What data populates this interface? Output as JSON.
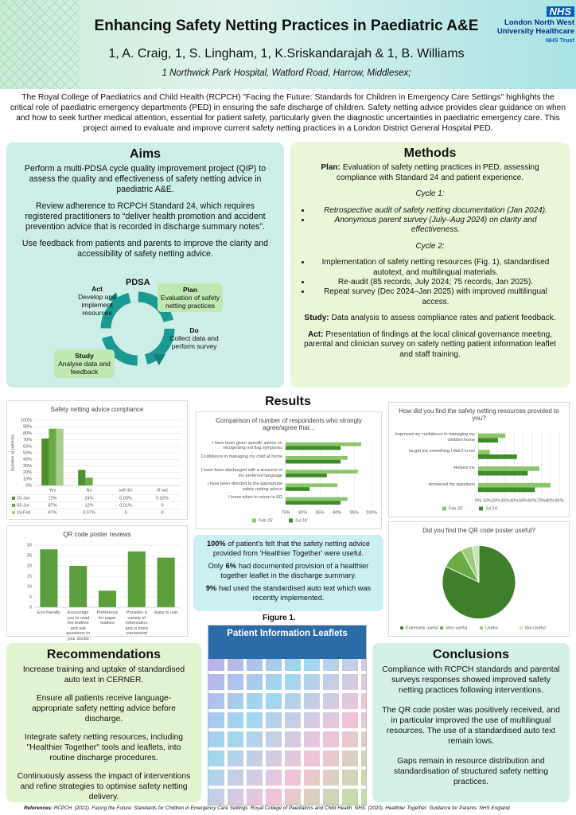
{
  "header": {
    "title": "Enhancing Safety Netting Practices in Paediatric A&E",
    "authors": "1, A. Craig, 1, S. Lingham, 1, K.Sriskandarajah & 1, B. Williams",
    "affiliation": "1 Northwick Park Hospital, Watford Road, Harrow, Middlesex;",
    "logo": {
      "badge": "NHS",
      "lines": [
        "London North West",
        "University Healthcare",
        "NHS Trust"
      ]
    }
  },
  "intro": "The Royal College of Paediatrics and Child Health (RCPCH) \"Facing the Future: Standards for Children in Emergency Care Settings\" highlights the critical role of paediatric emergency departments (PED) in ensuring the safe discharge of children. Safety netting advice provides clear guidance on when and how to seek further medical attention, essential for patient safety, particularly given the diagnostic uncertainties in paediatric emergency care. This project aimed to evaluate and improve current safety netting practices in a London District General Hospital PED.",
  "aims": {
    "heading": "Aims",
    "paragraphs": [
      "Perform a multi-PDSA cycle quality improvement project (QIP) to assess the quality and effectiveness of safety netting advice in paediatric A&E.",
      "Review adherence to RCPCH Standard 24, which requires registered practitioners to “deliver health promotion and accident prevention advice that is recorded in discharge summary notes”.",
      "Use feedback from patients and parents to improve the clarity and accessibility of safety netting advice."
    ],
    "pdsa": {
      "title": "PDSA",
      "steps": [
        {
          "name": "Plan",
          "text": "Evaluation of safety netting practices"
        },
        {
          "name": "Do",
          "text": "Collect data and perform survey"
        },
        {
          "name": "Study",
          "text": "Analyse data and feedback"
        },
        {
          "name": "Act",
          "text": "Develop and implement resources"
        }
      ]
    }
  },
  "methods": {
    "heading": "Methods",
    "plan": {
      "label": "Plan:",
      "text": "Evaluation of safety netting practices in PED, assessing compliance with Standard 24 and patient experience."
    },
    "cycles": [
      {
        "title": "Cycle 1:",
        "items": [
          "Retrospective audit of safety netting documentation (Jan 2024).",
          "Anonymous parent survey (July–Aug 2024) on clarity and effectiveness."
        ]
      },
      {
        "title": "Cycle 2:",
        "items": [
          "Implementation of safety netting resources (Fig. 1), standardised autotext, and multilingual materials.",
          "Re-audit (85 records, July 2024; 75 records, Jan 2025).",
          "Repeat survey (Dec 2024–Jan 2025) with improved multilingual access."
        ]
      }
    ],
    "study": {
      "label": "Study:",
      "text": "Data analysis to assess compliance rates and patient feedback."
    },
    "act": {
      "label": "Act:",
      "text": "Presentation of findings at the local clinical governance meeting, parental and clinician survey on safety netting patient information leaflet and staff training."
    }
  },
  "results": {
    "heading": "Results",
    "findings": [
      [
        {
          "bold": "100%"
        },
        {
          "text": "of patient's felt that the safety netting advice provided from 'Healthier Together' were useful."
        }
      ],
      [
        {
          "text": "Only"
        },
        {
          "bold": "6%"
        },
        {
          "text": "had documented provision of a healthier together leaflet in the discharge summary."
        }
      ],
      [
        {
          "bold": "9%"
        },
        {
          "text": "had used the standardised auto text which was recently implemented."
        }
      ]
    ]
  },
  "chart_data": [
    {
      "type": "bar",
      "title": "Safety netting advice compliance",
      "y_label": "Number of patients",
      "categories": [
        "Yes",
        "No",
        "self d/c",
        "l/f out"
      ],
      "series": [
        {
          "name": "15-Jan",
          "color": "#4f8f30",
          "values": [
            72,
            24,
            0,
            0.02
          ],
          "value_labels": [
            "72%",
            "24%",
            "0.00%",
            "0.02%"
          ]
        },
        {
          "name": "03-Jul",
          "color": "#6aab45",
          "values": [
            87,
            12,
            0.01,
            0
          ],
          "value_labels": [
            "87%",
            "12%",
            "0.01%",
            "0"
          ]
        },
        {
          "name": "19-Feb",
          "color": "#a9cf8e",
          "values": [
            87,
            0.07,
            0,
            0
          ],
          "value_labels": [
            "87%",
            "0.07%",
            "0",
            "0"
          ]
        }
      ],
      "ylim": [
        0,
        100
      ],
      "yticks": [
        {
          "value": 0,
          "label": "0%"
        },
        {
          "value": 10,
          "label": "10%"
        },
        {
          "value": 20,
          "label": "20%"
        },
        {
          "value": 30,
          "label": "30%"
        },
        {
          "value": 40,
          "label": "40%"
        },
        {
          "value": 50,
          "label": "50%"
        },
        {
          "value": 60,
          "label": "60%"
        },
        {
          "value": 70,
          "label": "70%"
        },
        {
          "value": 80,
          "label": "80%"
        },
        {
          "value": 90,
          "label": "90%"
        },
        {
          "value": 100,
          "label": "100%"
        }
      ],
      "grid": true,
      "data_table": true
    },
    {
      "type": "hbar",
      "title": "Comparison of number of respondents who strongly agree/agree that...",
      "categories": [
        "I have been given specific advice on recognising red flag symptoms",
        "Confidence in managing my child at home",
        "I have been discharged with a resource of my preferred language",
        "I have been directed to the appropriate safety netting advice",
        "I know when to return to ED"
      ],
      "series": [
        {
          "name": "Feb 25'",
          "color": "#8cc56a",
          "values": [
            97,
            93,
            96,
            90,
            93
          ]
        },
        {
          "name": "Jul 24'",
          "color": "#3f8a2b",
          "values": [
            91,
            91,
            87,
            82,
            91
          ]
        }
      ],
      "xlim": [
        75,
        100
      ],
      "xticks": [
        {
          "value": 75,
          "label": "75%"
        },
        {
          "value": 80,
          "label": "80%"
        },
        {
          "value": 85,
          "label": "85%"
        },
        {
          "value": 90,
          "label": "90%"
        },
        {
          "value": 95,
          "label": "95%"
        },
        {
          "value": 100,
          "label": "100%"
        }
      ],
      "grid": true
    },
    {
      "type": "hbar",
      "title": "How did you find the safety netting resources provided to you?",
      "categories": [
        "Improved my confidence in managing my children home",
        "taught me something I didn't know",
        "Helped me",
        "Answered my questions"
      ],
      "series": [
        {
          "name": "Feb 25'",
          "color": "#8cc56a",
          "values": [
            30,
            13,
            68,
            80
          ]
        },
        {
          "name": "Jul 24'",
          "color": "#3f8a2b",
          "values": [
            22,
            43,
            55,
            63
          ]
        }
      ],
      "xlim": [
        0,
        90
      ],
      "xticks": [
        {
          "value": 0,
          "label": "0%"
        },
        {
          "value": 10,
          "label": "10%"
        },
        {
          "value": 20,
          "label": "20%"
        },
        {
          "value": 30,
          "label": "30%"
        },
        {
          "value": 40,
          "label": "40%"
        },
        {
          "value": 50,
          "label": "50%"
        },
        {
          "value": 60,
          "label": "60%"
        },
        {
          "value": 70,
          "label": "70%"
        },
        {
          "value": 80,
          "label": "80%"
        },
        {
          "value": 90,
          "label": "90%"
        }
      ],
      "grid": true
    },
    {
      "type": "bar",
      "title": "QR code poster reviews",
      "categories": [
        "Eco-friendly",
        "Encourage you to read the leaflets and ask questions to your doctor",
        "Preference for paper leaflets",
        "Provides a variety of information and is more convenient",
        "Easy to use"
      ],
      "values": [
        28,
        20,
        8,
        27,
        24
      ],
      "color": "#5c9e3c",
      "ylim": [
        0,
        30
      ],
      "yticks": [
        0,
        5,
        10,
        15,
        20,
        25,
        30
      ],
      "grid": true
    },
    {
      "type": "pie",
      "title": "Did you find the QR code poster useful?",
      "categories": [
        "Extremely useful",
        "Very useful",
        "Useful",
        "Not Useful"
      ],
      "values": [
        82,
        10,
        5,
        3
      ],
      "colors": [
        "#3f7f2a",
        "#6aab45",
        "#9ccc7e",
        "#c9e3b6"
      ]
    }
  ],
  "figure": {
    "caption": "Figure 1.",
    "title": "Patient Information Leaflets"
  },
  "recommendations": {
    "heading": "Recommendations",
    "items": [
      "Increase training and uptake of standardised auto text in CERNER.",
      "Ensure all patients receive language-appropriate safety netting advice before discharge.",
      "Integrate safety netting resources, including \"Healthier Together\" tools and leaflets, into routine discharge procedures.",
      "Continuously assess the impact of interventions and refine strategies to optimise safety netting delivery."
    ]
  },
  "conclusions": {
    "heading": "Conclusions",
    "paragraphs": [
      "Compliance with RCPCH standards and parental surveys responses showed improved safety netting practices following interventions.",
      "The QR code poster was positively received, and in particular improved the use of multilingual resources. The use of a standardised auto text remain lows.",
      "Gaps remain in resource distribution and standardisation of structured safety netting practices."
    ]
  },
  "references": {
    "label": "References:",
    "text": "RCPCH. (2021). Facing the Future: Standards for Children in Emergency Care Settings. Royal College of Paediatrics and Child Health.  NHS. (2020). Healthier Together: Guidance for Parents. NHS England."
  }
}
